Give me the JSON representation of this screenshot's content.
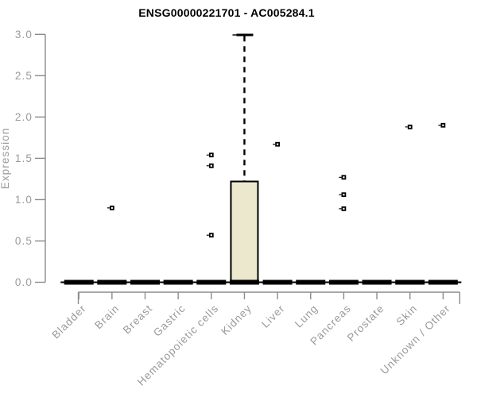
{
  "chart_data": {
    "type": "boxplot",
    "title": "ENSG00000221701 - AC005284.1",
    "xlabel": "",
    "ylabel": "Expression",
    "ylim": [
      0.0,
      3.0
    ],
    "yticks": [
      "0.0",
      "0.5",
      "1.0",
      "1.5",
      "2.0",
      "2.5",
      "3.0"
    ],
    "grid": false,
    "legend": "none",
    "categories": [
      "Bladder",
      "Brain",
      "Breast",
      "Gastric",
      "Hematopoietic cells",
      "Kidney",
      "Liver",
      "Lung",
      "Pancreas",
      "Prostate",
      "Skin",
      "Unknown / Other"
    ],
    "boxes": [
      {
        "category": "Bladder",
        "low": 0,
        "q1": 0,
        "median": 0,
        "q3": 0,
        "high": 0,
        "outliers": []
      },
      {
        "category": "Brain",
        "low": 0,
        "q1": 0,
        "median": 0,
        "q3": 0,
        "high": 0,
        "outliers": [
          0.9
        ]
      },
      {
        "category": "Breast",
        "low": 0,
        "q1": 0,
        "median": 0,
        "q3": 0,
        "high": 0,
        "outliers": []
      },
      {
        "category": "Gastric",
        "low": 0,
        "q1": 0,
        "median": 0,
        "q3": 0,
        "high": 0,
        "outliers": []
      },
      {
        "category": "Hematopoietic cells",
        "low": 0,
        "q1": 0,
        "median": 0,
        "q3": 0,
        "high": 0,
        "outliers": [
          1.54,
          1.41,
          0.57
        ]
      },
      {
        "category": "Kidney",
        "low": 0,
        "q1": 0.02,
        "median": 0,
        "q3": 1.22,
        "high": 3.0,
        "outliers": []
      },
      {
        "category": "Liver",
        "low": 0,
        "q1": 0,
        "median": 0,
        "q3": 0,
        "high": 0,
        "outliers": [
          1.67
        ]
      },
      {
        "category": "Lung",
        "low": 0,
        "q1": 0,
        "median": 0,
        "q3": 0,
        "high": 0,
        "outliers": []
      },
      {
        "category": "Pancreas",
        "low": 0,
        "q1": 0,
        "median": 0,
        "q3": 0,
        "high": 0,
        "outliers": [
          1.27,
          1.06,
          0.89
        ]
      },
      {
        "category": "Prostate",
        "low": 0,
        "q1": 0,
        "median": 0,
        "q3": 0,
        "high": 0,
        "outliers": []
      },
      {
        "category": "Skin",
        "low": 0,
        "q1": 0,
        "median": 0,
        "q3": 0,
        "high": 0,
        "outliers": [
          1.88
        ]
      },
      {
        "category": "Unknown / Other",
        "low": 0,
        "q1": 0,
        "median": 0,
        "q3": 0,
        "high": 0,
        "outliers": [
          1.9
        ]
      }
    ],
    "colors": {
      "box_fill": "#ece8cd",
      "box_stroke": "#000000",
      "data_black": "#000000",
      "axis_line": "#8b8b8b",
      "axis_text": "#9a9a9a",
      "title_text": "#000000",
      "background": "#ffffff"
    }
  }
}
